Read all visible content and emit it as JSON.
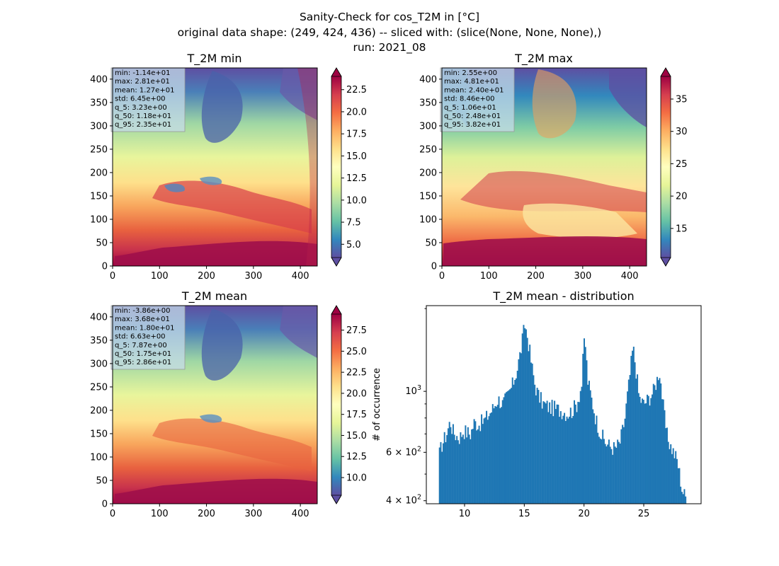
{
  "suptitle": {
    "line1": "Sanity-Check for cos_T2M in [°C]",
    "line2": "original data shape: (249, 424, 436) -- sliced with: (slice(None, None, None),)",
    "line3": "run: 2021_08"
  },
  "chart_data": [
    {
      "type": "heatmap",
      "title": "T_2M min",
      "colormap": "Spectral_r",
      "x_ticks": [
        "0",
        "100",
        "200",
        "300",
        "400"
      ],
      "y_ticks": [
        "0",
        "50",
        "100",
        "150",
        "200",
        "250",
        "300",
        "350",
        "400"
      ],
      "xlim": [
        0,
        436
      ],
      "ylim": [
        0,
        424
      ],
      "colorbar": {
        "ticks": [
          "5.0",
          "7.5",
          "10.0",
          "12.5",
          "15.0",
          "17.5",
          "20.0",
          "22.5"
        ],
        "range": [
          3.5,
          24.0
        ]
      },
      "stats": [
        "min: -1.14e+01",
        "max: 2.81e+01",
        "mean: 1.27e+01",
        "std: 6.45e+00",
        "q_5: 3.23e+00",
        "q_50: 1.18e+01",
        "q_95: 2.35e+01"
      ]
    },
    {
      "type": "heatmap",
      "title": "T_2M max",
      "colormap": "Spectral_r",
      "x_ticks": [
        "0",
        "100",
        "200",
        "300",
        "400"
      ],
      "y_ticks": [
        "0",
        "50",
        "100",
        "150",
        "200",
        "250",
        "300",
        "350",
        "400"
      ],
      "xlim": [
        0,
        436
      ],
      "ylim": [
        0,
        424
      ],
      "colorbar": {
        "ticks": [
          "15",
          "20",
          "25",
          "30",
          "35"
        ],
        "range": [
          10.5,
          38.5
        ]
      },
      "stats": [
        "min: 2.55e+00",
        "max: 4.81e+01",
        "mean: 2.40e+01",
        "std: 8.46e+00",
        "q_5: 1.06e+01",
        "q_50: 2.48e+01",
        "q_95: 3.82e+01"
      ]
    },
    {
      "type": "heatmap",
      "title": "T_2M mean",
      "colormap": "Spectral_r",
      "x_ticks": [
        "0",
        "100",
        "200",
        "300",
        "400"
      ],
      "y_ticks": [
        "0",
        "50",
        "100",
        "150",
        "200",
        "250",
        "300",
        "350",
        "400"
      ],
      "xlim": [
        0,
        436
      ],
      "ylim": [
        0,
        424
      ],
      "colorbar": {
        "ticks": [
          "10.0",
          "12.5",
          "15.0",
          "17.5",
          "20.0",
          "22.5",
          "25.0",
          "27.5"
        ],
        "range": [
          7.9,
          29.4
        ]
      },
      "stats": [
        "min: -3.86e+00",
        "max: 3.68e+01",
        "mean: 1.80e+01",
        "std: 6.63e+00",
        "q_5: 7.87e+00",
        "q_50: 1.75e+01",
        "q_95: 2.86e+01"
      ]
    },
    {
      "type": "bar",
      "title": "T_2M mean - distribution",
      "ylabel": "# of occurrence",
      "yscale": "log",
      "color": "#1f77b4",
      "xlim": [
        6.8,
        29.8
      ],
      "ylim": [
        390,
        2050
      ],
      "x_ticks": [
        "10",
        "15",
        "20",
        "25"
      ],
      "y_ticks": [
        {
          "value": 400,
          "base": "4",
          "exp": "2",
          "label": "4 × 10^2"
        },
        {
          "value": 600,
          "base": "6",
          "exp": "2",
          "label": "6 × 10^2"
        },
        {
          "value": 1000,
          "base": "",
          "exp": "3",
          "label": "10^3"
        }
      ],
      "bins": {
        "start": 7.85,
        "end": 28.55,
        "count": 200
      },
      "anchors": [
        [
          7.85,
          580
        ],
        [
          8.1,
          640
        ],
        [
          8.5,
          700
        ],
        [
          8.8,
          780
        ],
        [
          9.0,
          720
        ],
        [
          9.3,
          690
        ],
        [
          9.6,
          680
        ],
        [
          9.9,
          720
        ],
        [
          10.2,
          710
        ],
        [
          10.5,
          700
        ],
        [
          10.8,
          770
        ],
        [
          11.2,
          760
        ],
        [
          11.6,
          780
        ],
        [
          12.0,
          820
        ],
        [
          12.4,
          870
        ],
        [
          12.8,
          940
        ],
        [
          13.2,
          900
        ],
        [
          13.6,
          960
        ],
        [
          14.0,
          1050
        ],
        [
          14.4,
          1200
        ],
        [
          14.7,
          1400
        ],
        [
          14.9,
          1600
        ],
        [
          15.05,
          1750
        ],
        [
          15.3,
          1550
        ],
        [
          15.6,
          1250
        ],
        [
          15.9,
          1050
        ],
        [
          16.2,
          960
        ],
        [
          16.6,
          900
        ],
        [
          17.0,
          880
        ],
        [
          17.4,
          870
        ],
        [
          17.8,
          860
        ],
        [
          18.2,
          850
        ],
        [
          18.6,
          830
        ],
        [
          19.0,
          850
        ],
        [
          19.4,
          900
        ],
        [
          19.8,
          1050
        ],
        [
          20.05,
          1600
        ],
        [
          20.3,
          1100
        ],
        [
          20.6,
          950
        ],
        [
          21.0,
          790
        ],
        [
          21.4,
          700
        ],
        [
          21.8,
          650
        ],
        [
          22.2,
          630
        ],
        [
          22.6,
          620
        ],
        [
          23.0,
          650
        ],
        [
          23.4,
          780
        ],
        [
          23.8,
          1100
        ],
        [
          24.1,
          1450
        ],
        [
          24.35,
          1200
        ],
        [
          24.6,
          950
        ],
        [
          25.0,
          900
        ],
        [
          25.4,
          940
        ],
        [
          25.8,
          1000
        ],
        [
          26.1,
          1100
        ],
        [
          26.3,
          1200
        ],
        [
          26.6,
          900
        ],
        [
          26.9,
          700
        ],
        [
          27.2,
          640
        ],
        [
          27.5,
          600
        ],
        [
          27.8,
          560
        ],
        [
          28.0,
          500
        ],
        [
          28.2,
          440
        ],
        [
          28.4,
          420
        ],
        [
          28.55,
          410
        ]
      ]
    }
  ]
}
